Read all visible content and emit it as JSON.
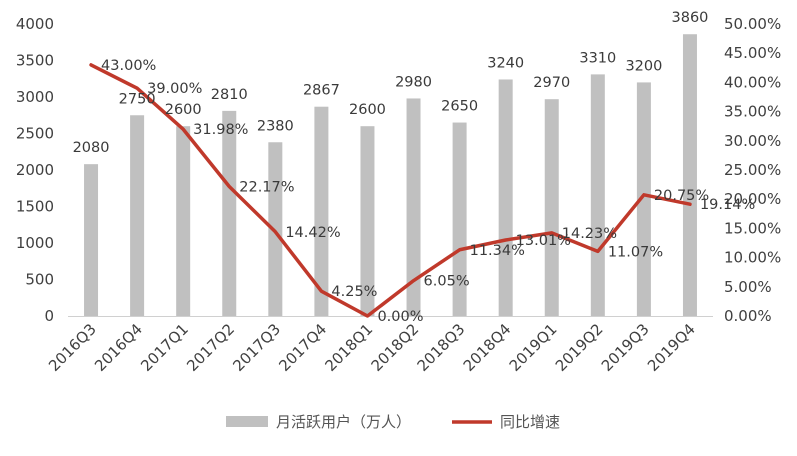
{
  "chart_data": {
    "type": "bar+line",
    "categories": [
      "2016Q3",
      "2016Q4",
      "2017Q1",
      "2017Q2",
      "2017Q3",
      "2017Q4",
      "2018Q1",
      "2018Q2",
      "2018Q3",
      "2018Q4",
      "2019Q1",
      "2019Q2",
      "2019Q3",
      "2019Q4"
    ],
    "series": [
      {
        "name": "月活跃用户（万人）",
        "type": "bar",
        "axis": "left",
        "values": [
          2080,
          2750,
          2600,
          2810,
          2380,
          2867,
          2600,
          2980,
          2650,
          3240,
          2970,
          3310,
          3200,
          3860
        ],
        "labels": [
          "2080",
          "2750",
          "2600",
          "2810",
          "2380",
          "2867",
          "2600",
          "2980",
          "2650",
          "3240",
          "2970",
          "3310",
          "3200",
          "3860"
        ]
      },
      {
        "name": "同比增速",
        "type": "line",
        "axis": "right",
        "values": [
          43.0,
          39.0,
          31.98,
          22.17,
          14.42,
          4.25,
          0.0,
          6.05,
          11.34,
          13.01,
          14.23,
          11.07,
          20.75,
          19.14
        ],
        "labels": [
          "43.00%",
          "39.00%",
          "31.98%",
          "22.17%",
          "14.42%",
          "4.25%",
          "0.00%",
          "6.05%",
          "11.34%",
          "13.01%",
          "14.23%",
          "11.07%",
          "20.75%",
          "19.14%"
        ]
      }
    ],
    "y_left": {
      "range": [
        0,
        4000
      ],
      "ticks": [
        "0",
        "500",
        "1000",
        "1500",
        "2000",
        "2500",
        "3000",
        "3500",
        "4000"
      ]
    },
    "y_right": {
      "range": [
        0,
        50
      ],
      "ticks": [
        "0.00%",
        "5.00%",
        "10.00%",
        "15.00%",
        "20.00%",
        "25.00%",
        "30.00%",
        "35.00%",
        "40.00%",
        "45.00%",
        "50.00%"
      ]
    },
    "grid": false,
    "legend_position": "bottom",
    "colors": {
      "bar": "#c0c0c0",
      "line": "#c0392b"
    }
  }
}
